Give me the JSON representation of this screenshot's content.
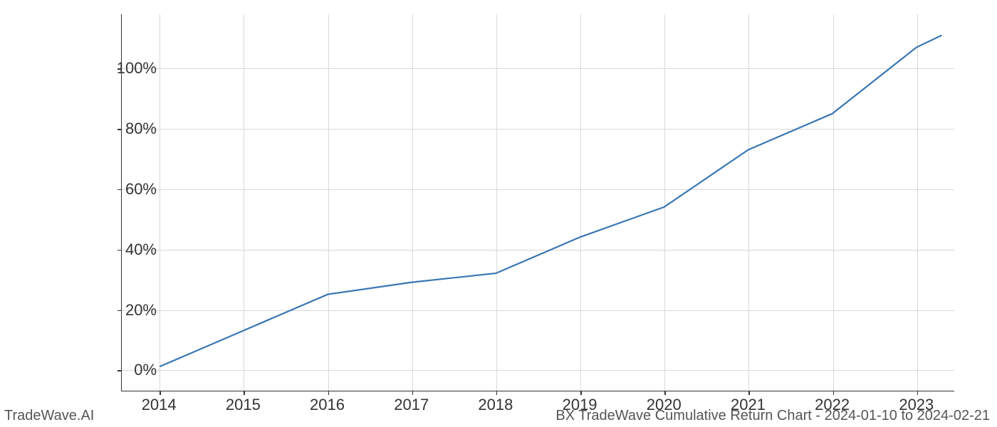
{
  "chart": {
    "type": "line",
    "x_values": [
      2014,
      2015,
      2016,
      2017,
      2018,
      2019,
      2020,
      2021,
      2022,
      2023,
      2023.3
    ],
    "y_values": [
      1,
      13,
      25,
      29,
      32,
      44,
      54,
      73,
      85,
      107,
      111
    ],
    "line_color": "#3977b4",
    "line_width": 2.2,
    "background_color": "#ffffff",
    "grid_color": "#d9d9d9",
    "axis_color": "#333333",
    "xlim": [
      2013.55,
      2023.45
    ],
    "ylim": [
      -7,
      118
    ],
    "x_ticks": [
      2014,
      2015,
      2016,
      2017,
      2018,
      2019,
      2020,
      2021,
      2022,
      2023
    ],
    "x_tick_labels": [
      "2014",
      "2015",
      "2016",
      "2017",
      "2018",
      "2019",
      "2020",
      "2021",
      "2022",
      "2023"
    ],
    "y_ticks": [
      0,
      20,
      40,
      60,
      80,
      100
    ],
    "y_tick_labels": [
      "0%",
      "20%",
      "40%",
      "60%",
      "80%",
      "100%"
    ],
    "tick_fontsize": 22,
    "footer_fontsize": 20
  },
  "footer": {
    "left": "TradeWave.AI",
    "right": "BX TradeWave Cumulative Return Chart - 2024-01-10 to 2024-02-21"
  }
}
